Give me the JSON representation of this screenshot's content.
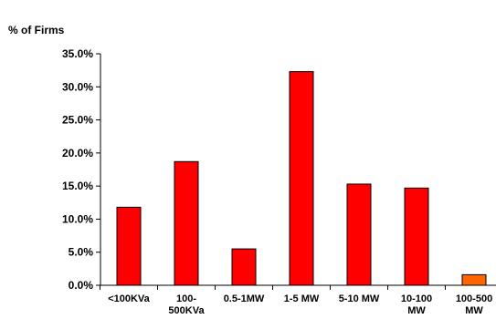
{
  "chart_data": {
    "type": "bar",
    "ylabel": "% of Firms",
    "xlabel": "",
    "title": "",
    "ylim": [
      0,
      35
    ],
    "yticks": [
      "0.0%",
      "5.0%",
      "10.0%",
      "15.0%",
      "20.0%",
      "25.0%",
      "30.0%",
      "35.0%"
    ],
    "ytick_values": [
      0,
      5,
      10,
      15,
      20,
      25,
      30,
      35
    ],
    "categories": [
      [
        "<100KVa"
      ],
      [
        "100-",
        "500KVa"
      ],
      [
        "0.5-1MW"
      ],
      [
        "1-5 MW"
      ],
      [
        "5-10 MW"
      ],
      [
        "10-100",
        "MW"
      ],
      [
        "100-500",
        "MW"
      ]
    ],
    "values": [
      11.8,
      18.7,
      5.5,
      32.3,
      15.3,
      14.7,
      1.6
    ],
    "colors": [
      "#ff0000",
      "#ff0000",
      "#ff0000",
      "#ff0000",
      "#ff0000",
      "#ff0000",
      "#ff6600"
    ],
    "grid": false
  }
}
